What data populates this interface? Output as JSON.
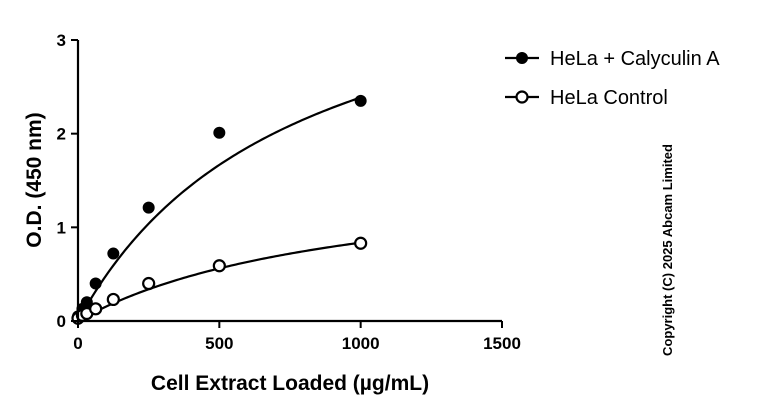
{
  "chart_data": {
    "type": "scatter",
    "title": "",
    "xlabel": "Cell Extract Loaded (µg/mL)",
    "ylabel": "O.D. (450 nm)",
    "xlim": [
      0,
      1500
    ],
    "ylim": [
      0,
      3
    ],
    "x_ticks": [
      "0",
      "500",
      "1000",
      "1500"
    ],
    "y_ticks": [
      "0",
      "1",
      "2",
      "3"
    ],
    "grid": false,
    "legend_position": "top-right",
    "series": [
      {
        "name": "HeLa + Calyculin A",
        "marker": "filled-circle",
        "x": [
          0,
          15.6,
          31.25,
          62.5,
          125,
          250,
          500,
          1000
        ],
        "y": [
          0.05,
          0.13,
          0.2,
          0.4,
          0.72,
          1.21,
          2.01,
          2.35
        ],
        "fit": {
          "model": "hyperbola",
          "bmax": 4.2,
          "kd": 760
        }
      },
      {
        "name": "HeLa Control",
        "marker": "open-circle",
        "x": [
          0,
          15.6,
          31.25,
          62.5,
          125,
          250,
          500,
          1000
        ],
        "y": [
          0.03,
          0.06,
          0.08,
          0.13,
          0.23,
          0.4,
          0.59,
          0.83
        ],
        "fit": {
          "model": "hyperbola",
          "bmax": 1.64,
          "kd": 960
        }
      }
    ],
    "annotations": [
      "Copyright (C) 2025 Abcam Limited"
    ]
  }
}
